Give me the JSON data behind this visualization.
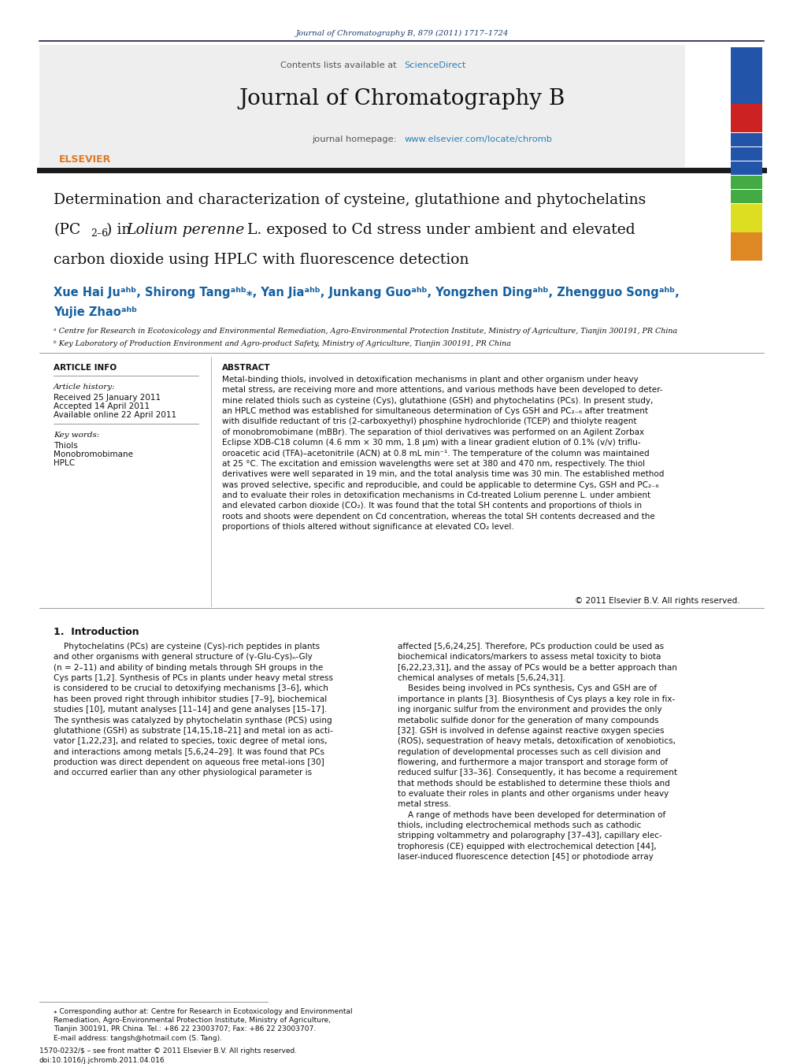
{
  "journal_ref": "Journal of Chromatography B, 879 (2011) 1717–1724",
  "journal_ref_color": "#1a3a6b",
  "sciencedirect_color": "#2980b9",
  "journal_title": "Journal of Chromatography B",
  "homepage_url": "www.elsevier.com/locate/chromb",
  "homepage_url_color": "#2980b9",
  "divider_color": "#1a1a4a",
  "received": "Received 25 January 2011",
  "accepted": "Accepted 14 April 2011",
  "available": "Available online 22 April 2011",
  "kw1": "Thiols",
  "kw2": "Monobromobimane",
  "kw3": "HPLC",
  "copyright": "© 2011 Elsevier B.V. All rights reserved.",
  "issn": "1570-0232/$ – see front matter © 2011 Elsevier B.V. All rights reserved.",
  "doi": "doi:10.1016/j.jchromb.2011.04.016",
  "bg_color": "#ffffff",
  "link_color": "#1560a0",
  "strip_colors": [
    "#2255aa",
    "#2255aa",
    "#2255aa",
    "#2255aa",
    "#cc2222",
    "#cc2222",
    "#2255aa",
    "#2255aa",
    "#2255aa",
    "#44aa44",
    "#44aa44",
    "#dddd22",
    "#dddd22",
    "#dd8822",
    "#dd8822"
  ]
}
